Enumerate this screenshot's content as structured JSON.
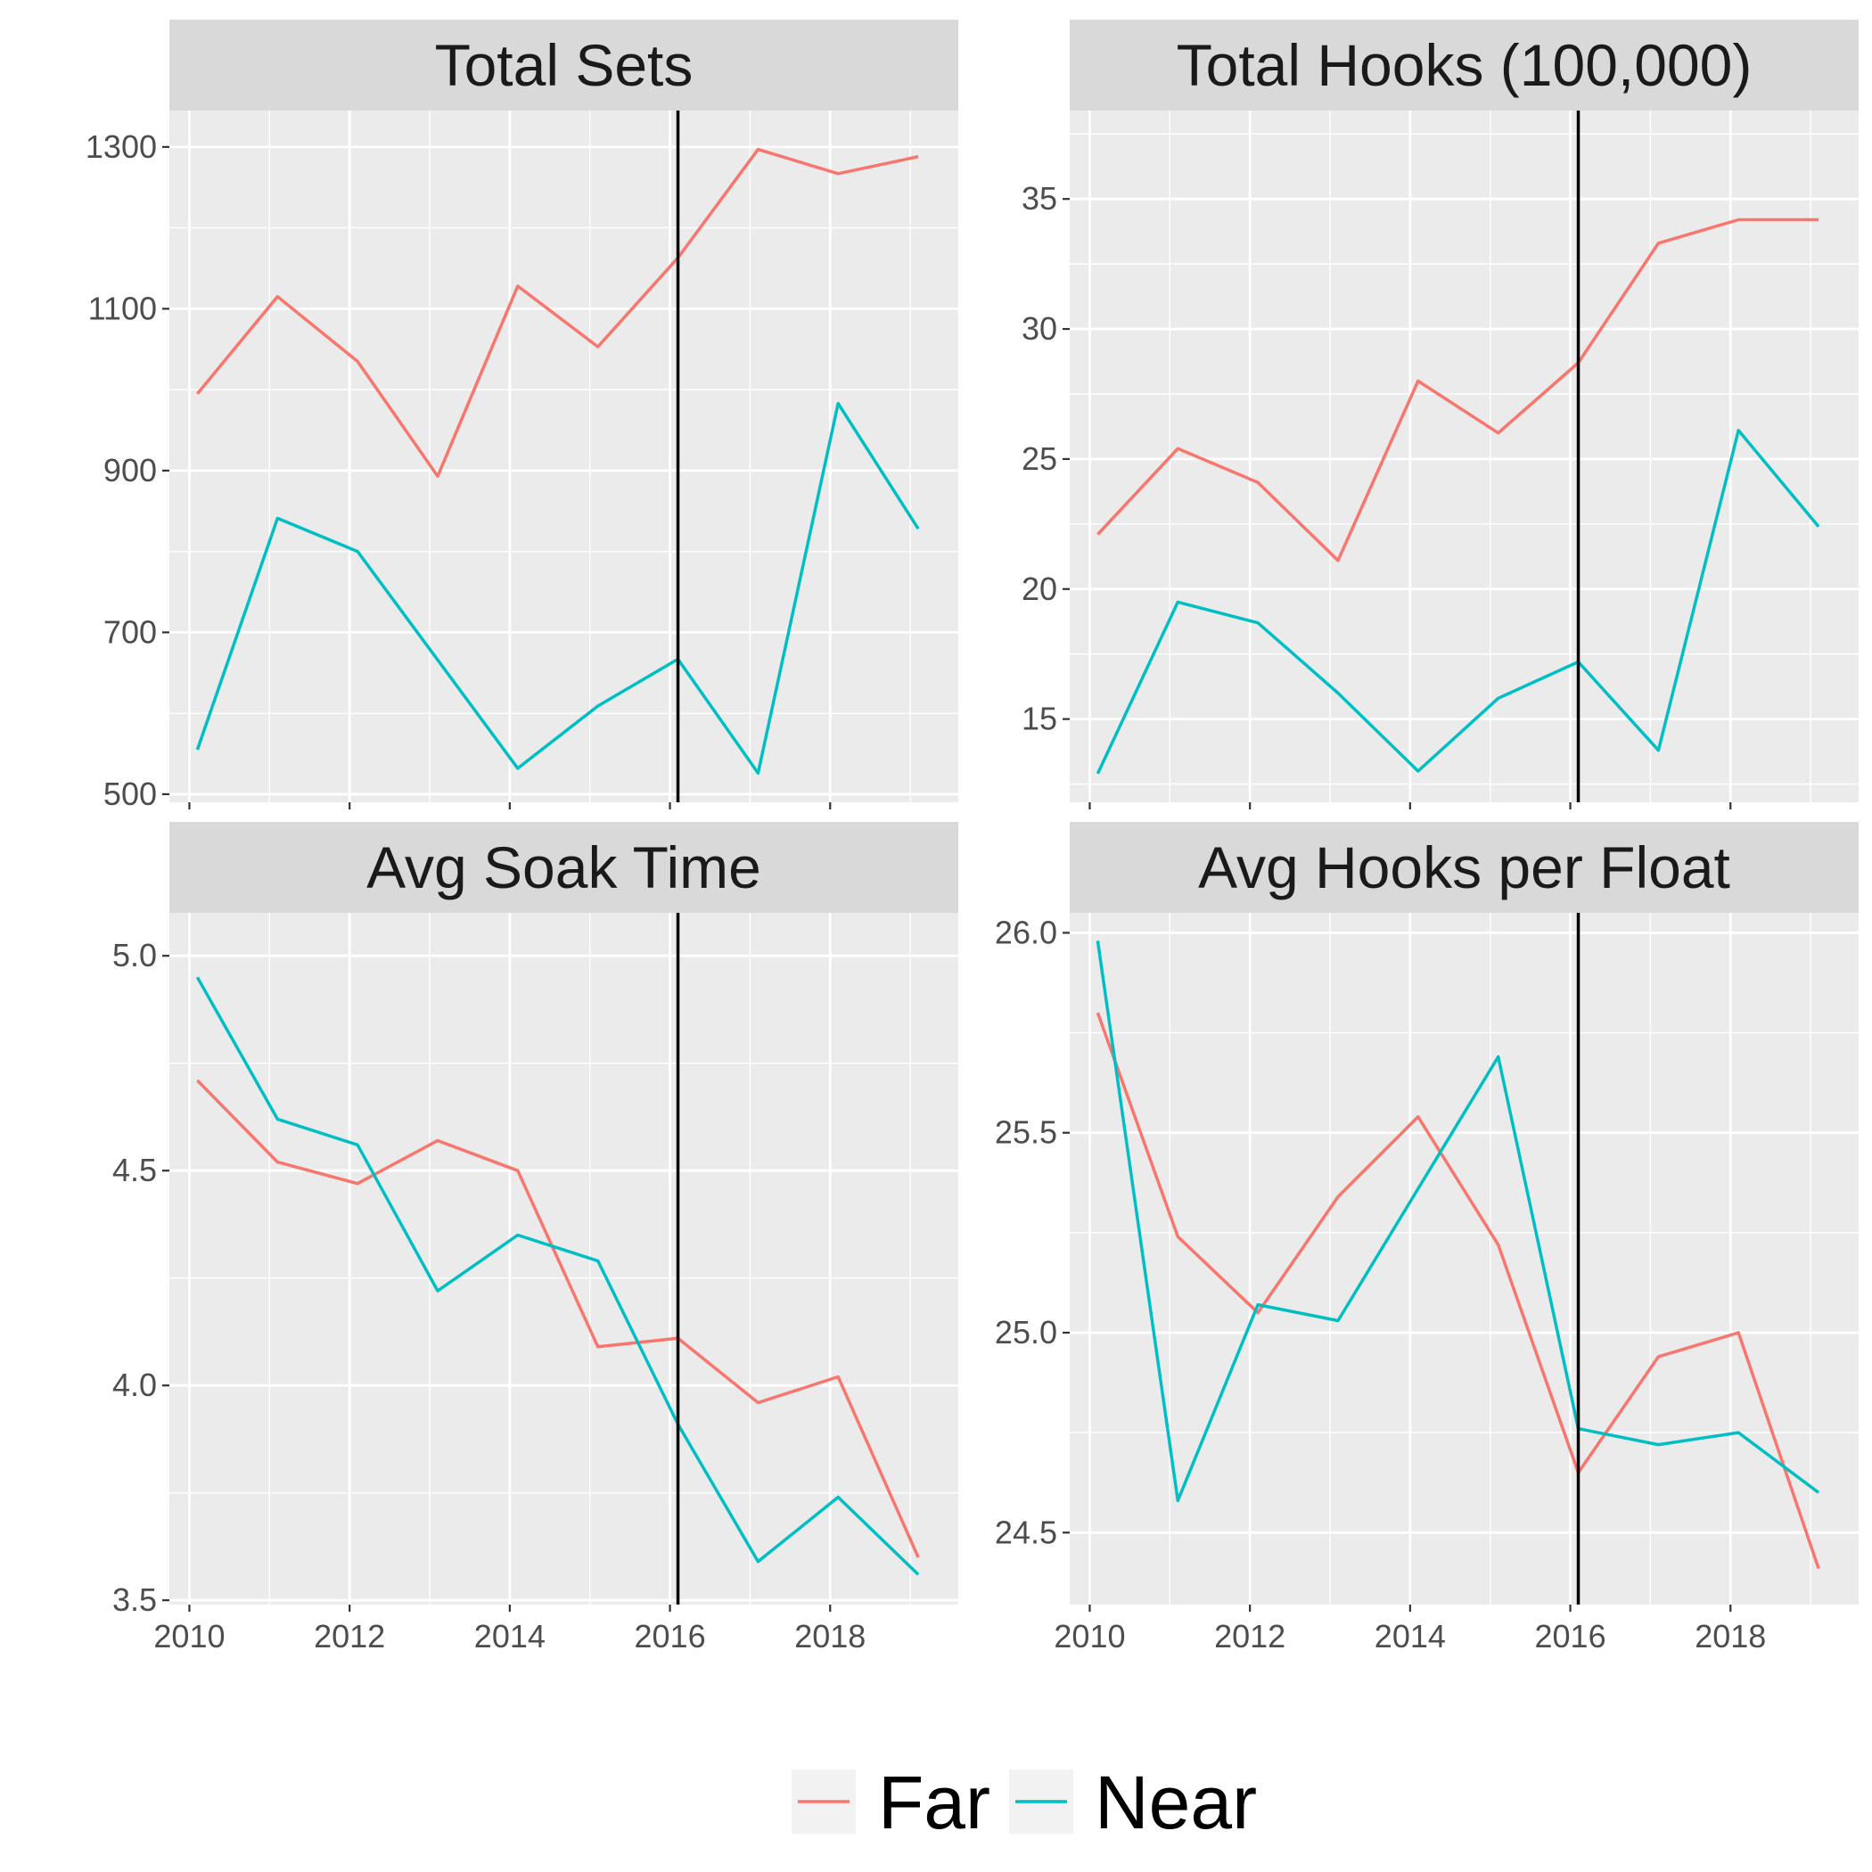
{
  "chart_data": [
    {
      "type": "line",
      "title": "Total Sets",
      "x": [
        2010.1,
        2011.1,
        2012.1,
        2013.1,
        2014.1,
        2015.1,
        2016.1,
        2017.1,
        2018.1,
        2019.1
      ],
      "xlim": [
        2009.75,
        2019.6
      ],
      "x_ticks": [
        2010,
        2012,
        2014,
        2016,
        2018
      ],
      "ylim": [
        490,
        1345
      ],
      "y_ticks": [
        500,
        700,
        900,
        1100,
        1300
      ],
      "vline": 2016.1,
      "series": [
        {
          "name": "Far",
          "values": [
            995,
            1115,
            1035,
            893,
            1128,
            1053,
            1163,
            1297,
            1267,
            1288
          ]
        },
        {
          "name": "Near",
          "values": [
            555,
            841,
            800,
            666,
            532,
            609,
            667,
            526,
            983,
            828
          ]
        }
      ],
      "grid": true
    },
    {
      "type": "line",
      "title": "Total Hooks (100,000)",
      "x": [
        2010.1,
        2011.1,
        2012.1,
        2013.1,
        2014.1,
        2015.1,
        2016.1,
        2017.1,
        2018.1,
        2019.1
      ],
      "xlim": [
        2009.75,
        2019.6
      ],
      "x_ticks": [
        2010,
        2012,
        2014,
        2016,
        2018
      ],
      "ylim": [
        11.8,
        38.4
      ],
      "y_ticks": [
        15,
        20,
        25,
        30,
        35
      ],
      "vline": 2016.1,
      "series": [
        {
          "name": "Far",
          "values": [
            22.1,
            25.4,
            24.1,
            21.1,
            28.0,
            26.0,
            28.7,
            33.3,
            34.2,
            34.2
          ]
        },
        {
          "name": "Near",
          "values": [
            12.9,
            19.5,
            18.7,
            16.0,
            13.0,
            15.8,
            17.2,
            13.8,
            26.1,
            22.4
          ]
        }
      ],
      "grid": true
    },
    {
      "type": "line",
      "title": "Avg Soak Time",
      "x": [
        2010.1,
        2011.1,
        2012.1,
        2013.1,
        2014.1,
        2015.1,
        2016.1,
        2017.1,
        2018.1,
        2019.1
      ],
      "xlim": [
        2009.75,
        2019.6
      ],
      "x_ticks": [
        2010,
        2012,
        2014,
        2016,
        2018
      ],
      "ylim": [
        3.49,
        5.1
      ],
      "y_ticks": [
        3.5,
        4.0,
        4.5,
        5.0
      ],
      "y_tick_labels": [
        "3.5",
        "4.0",
        "4.5",
        "5.0"
      ],
      "vline": 2016.1,
      "series": [
        {
          "name": "Far",
          "values": [
            4.71,
            4.52,
            4.47,
            4.57,
            4.5,
            4.09,
            4.11,
            3.96,
            4.02,
            3.6
          ]
        },
        {
          "name": "Near",
          "values": [
            4.95,
            4.62,
            4.56,
            4.22,
            4.35,
            4.29,
            3.91,
            3.59,
            3.74,
            3.56
          ]
        }
      ],
      "grid": true
    },
    {
      "type": "line",
      "title": "Avg Hooks per Float",
      "x": [
        2010.1,
        2011.1,
        2012.1,
        2013.1,
        2014.1,
        2015.1,
        2016.1,
        2017.1,
        2018.1,
        2019.1
      ],
      "xlim": [
        2009.75,
        2019.6
      ],
      "x_ticks": [
        2010,
        2012,
        2014,
        2016,
        2018
      ],
      "ylim": [
        24.32,
        26.05
      ],
      "y_ticks": [
        24.5,
        25.0,
        25.5,
        26.0
      ],
      "y_tick_labels": [
        "24.5",
        "25.0",
        "25.5",
        "26.0"
      ],
      "vline": 2016.1,
      "series": [
        {
          "name": "Far",
          "values": [
            25.8,
            25.24,
            25.05,
            25.34,
            25.54,
            25.22,
            24.65,
            24.94,
            25.0,
            24.41
          ]
        },
        {
          "name": "Near",
          "values": [
            25.98,
            24.58,
            25.07,
            25.03,
            25.36,
            25.69,
            24.76,
            24.72,
            24.75,
            24.6
          ]
        }
      ],
      "grid": true
    }
  ],
  "legend": {
    "placement": "bottom",
    "items": [
      {
        "label": "Far",
        "color": "#F8766D"
      },
      {
        "label": "Near",
        "color": "#00BFC4"
      }
    ]
  },
  "colors": {
    "Far": "#F8766D",
    "Near": "#00BFC4",
    "panel_background": "#EBEBEB",
    "strip_background": "#D9D9D9",
    "grid": "#FFFFFF",
    "vline": "#000000"
  }
}
